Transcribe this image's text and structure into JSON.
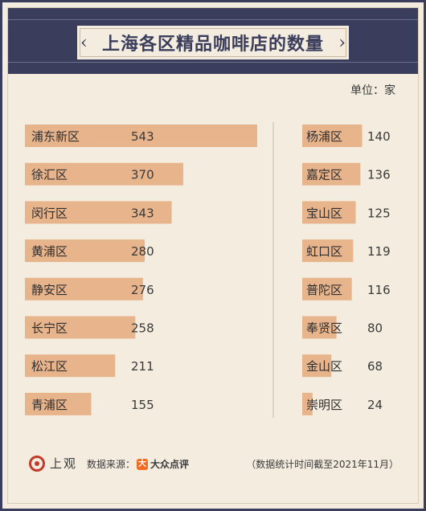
{
  "title": "上海各区精品咖啡店的数量",
  "unit": "单位：家",
  "chart_data": {
    "type": "bar",
    "orientation": "horizontal",
    "xlim": [
      0,
      543
    ],
    "columns": [
      {
        "categories": [
          "浦东新区",
          "徐汇区",
          "闵行区",
          "黄浦区",
          "静安区",
          "长宁区",
          "松江区",
          "青浦区"
        ],
        "values": [
          543,
          370,
          343,
          280,
          276,
          258,
          211,
          155
        ]
      },
      {
        "categories": [
          "杨浦区",
          "嘉定区",
          "宝山区",
          "虹口区",
          "普陀区",
          "奉贤区",
          "金山区",
          "崇明区"
        ],
        "values": [
          140,
          136,
          125,
          119,
          116,
          80,
          68,
          24
        ]
      }
    ],
    "bar_color": "#e8b48c"
  },
  "footer": {
    "logo_text": "上观",
    "source_label": "数据来源：",
    "source_icon": "大",
    "source_name": "大众点评",
    "note": "（数据统计时间截至2021年11月）"
  }
}
